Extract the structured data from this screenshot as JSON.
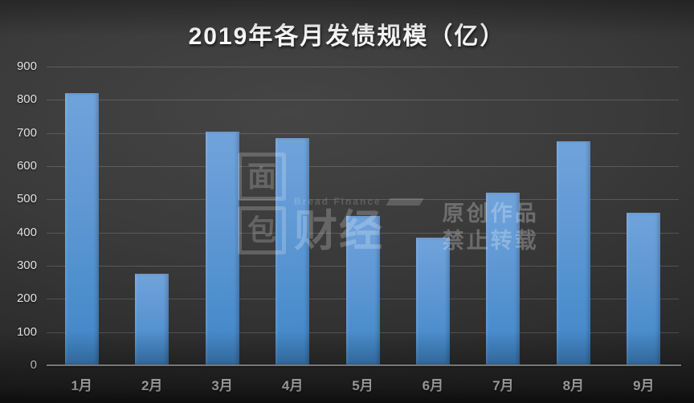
{
  "title": "2019年各月发债规模（亿）",
  "watermark": {
    "brand_box_top": "面",
    "brand_box_bottom": "包",
    "brand_rest": "财经",
    "brand_en": "Bread Finance",
    "notice_line1": "原创作品",
    "notice_line2": "禁止转载"
  },
  "colors": {
    "background_center": "#454545",
    "background_edge": "#1e1e1e",
    "bar_top": "#71a3db",
    "bar_bottom": "#3f86c8",
    "gridline": "rgba(255,255,255,0.16)",
    "axis_line": "#9c9c9c",
    "axis_label": "#e3e3e3",
    "title_text": "#f7f7f7"
  },
  "chart_data": {
    "type": "bar",
    "title": "2019年各月发债规模（亿）",
    "categories": [
      "1月",
      "2月",
      "3月",
      "4月",
      "5月",
      "6月",
      "7月",
      "8月",
      "9月"
    ],
    "values": [
      820,
      275,
      705,
      685,
      450,
      385,
      520,
      675,
      460
    ],
    "xlabel": "",
    "ylabel": "",
    "ylim": [
      0,
      900
    ],
    "ytick_step": 100,
    "yticks": [
      0,
      100,
      200,
      300,
      400,
      500,
      600,
      700,
      800,
      900
    ],
    "grid": true,
    "legend": false,
    "bar_color": "blue-gradient"
  }
}
